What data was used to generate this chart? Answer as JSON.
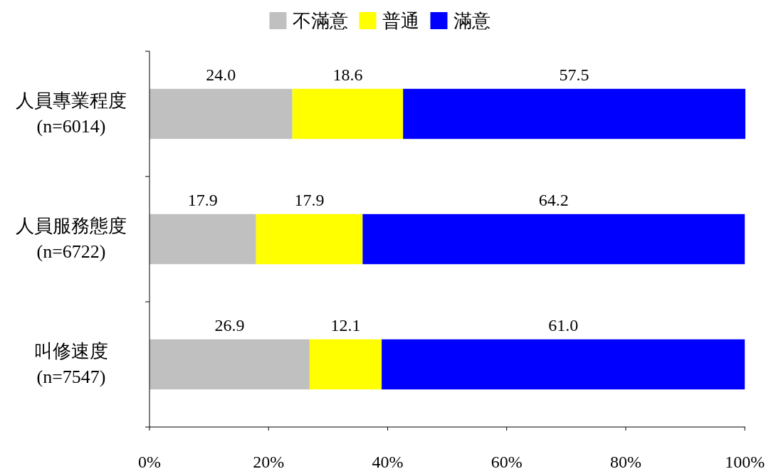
{
  "chart_data": {
    "type": "bar",
    "orientation": "horizontal",
    "stacked": true,
    "categories": [
      "人員專業程度\n(n=6014)",
      "人員服務態度\n(n=6722)",
      "叫修速度\n(n=7547)"
    ],
    "series": [
      {
        "name": "不滿意",
        "color": "#c0c0c0",
        "values": [
          24.0,
          17.9,
          26.9
        ],
        "value_labels": [
          "24.0",
          "17.9",
          "26.9"
        ]
      },
      {
        "name": "普通",
        "color": "#ffff00",
        "values": [
          18.6,
          17.9,
          12.1
        ],
        "value_labels": [
          "18.6",
          "17.9",
          "12.1"
        ]
      },
      {
        "name": "滿意",
        "color": "#0000ff",
        "values": [
          57.5,
          64.2,
          61.0
        ],
        "value_labels": [
          "57.5",
          "64.2",
          "61.0"
        ]
      }
    ],
    "xlim": [
      0,
      100.1
    ],
    "xticks": [
      {
        "value": 0,
        "label": "0%"
      },
      {
        "value": 20,
        "label": "20%"
      },
      {
        "value": 40,
        "label": "40%"
      },
      {
        "value": 60,
        "label": "60%"
      },
      {
        "value": 80,
        "label": "80%"
      },
      {
        "value": 100,
        "label": "100%"
      }
    ],
    "legend": "top"
  }
}
